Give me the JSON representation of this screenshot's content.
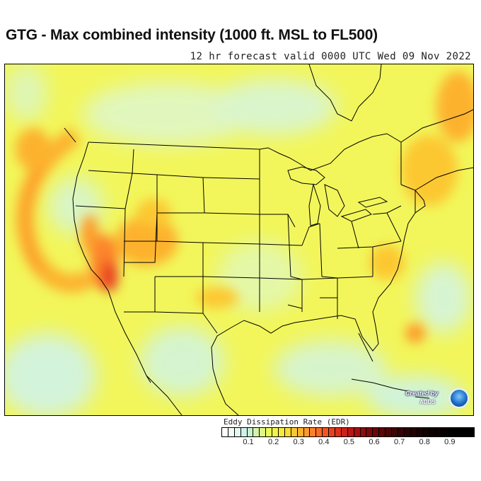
{
  "title": "GTG - Max combined intensity (1000 ft. MSL to FL500)",
  "subtitle": "12 hr forecast valid 0000 UTC Wed 09 Nov 2022",
  "legend": {
    "label": "Eddy Dissipation Rate (EDR)",
    "ticks": [
      "0.1",
      "0.2",
      "0.3",
      "0.4",
      "0.5",
      "0.6",
      "0.7",
      "0.8",
      "0.9"
    ],
    "colors": [
      "#ffffff",
      "#f4fbf4",
      "#e3f7ee",
      "#ccf3ea",
      "#c6f1d0",
      "#d2f3a8",
      "#e0f682",
      "#eaf85a",
      "#f2f442",
      "#f7ea3a",
      "#fadb38",
      "#fcc832",
      "#fdb22e",
      "#fd9a2c",
      "#fc822a",
      "#f96a27",
      "#f25424",
      "#e84020",
      "#dc301c",
      "#cc2018",
      "#b81614",
      "#a31010",
      "#8e0c0c",
      "#7a0a0a",
      "#680808",
      "#580606",
      "#4a0505",
      "#3e0404",
      "#340303",
      "#2a0202",
      "#220202",
      "#1a0101",
      "#140101",
      "#100000",
      "#0c0000",
      "#080000",
      "#040000",
      "#000000",
      "#000000",
      "#000000"
    ]
  },
  "credit": {
    "line1": "Created by",
    "line2": "ADDS"
  },
  "colors": {
    "background": "#ffffa0",
    "border": "#000000"
  }
}
